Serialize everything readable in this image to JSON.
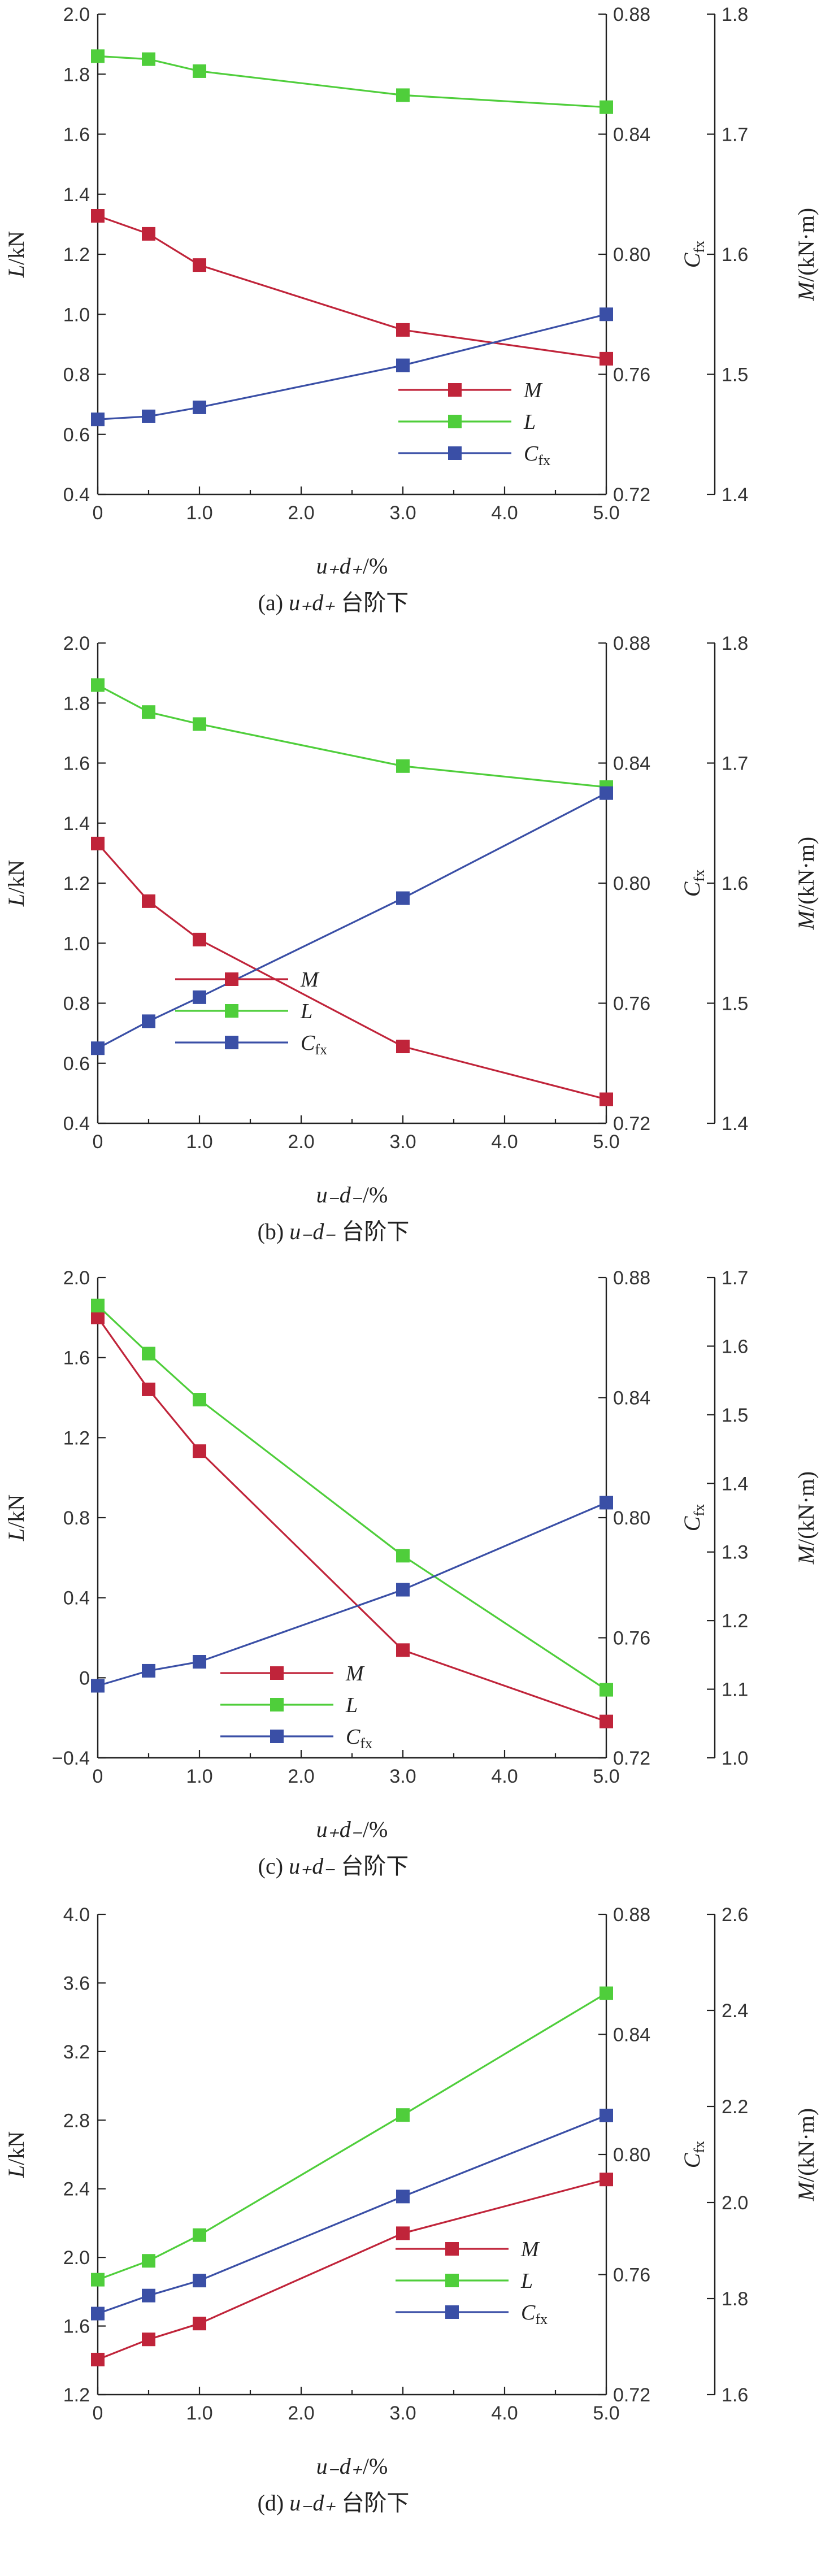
{
  "colors": {
    "M": "#c0243a",
    "L": "#4fce3b",
    "C": "#3a4fa6"
  },
  "legend": {
    "M": "M",
    "L": "L",
    "C_main": "C",
    "C_sub": "fx"
  },
  "axis_labels": {
    "left_main": "L",
    "left_unit": "/kN",
    "mid_main": "C",
    "mid_sub": "fx",
    "right_main": "M",
    "right_unit": "/(kN·m)"
  },
  "chart_data": [
    {
      "type": "line",
      "caption": {
        "prefix": "(a) ",
        "mid": "u₊d₊",
        "suffix": " 台阶下"
      },
      "xlabel": {
        "main": "u₊d₊",
        "unit": "/%"
      },
      "x_ticks": [
        "0",
        "1.0",
        "2.0",
        "3.0",
        "4.0",
        "5.0"
      ],
      "x_range": [
        0,
        5
      ],
      "L_axis": {
        "range": [
          0.4,
          2.0
        ],
        "ticks": [
          "0.4",
          "0.6",
          "0.8",
          "1.0",
          "1.2",
          "1.4",
          "1.6",
          "1.8",
          "2.0"
        ]
      },
      "C_axis": {
        "range": [
          0.72,
          0.88
        ],
        "ticks": [
          "0.72",
          "0.76",
          "0.80",
          "0.84",
          "0.88"
        ]
      },
      "M_axis": {
        "range": [
          1.4,
          1.8
        ],
        "ticks": [
          "1.4",
          "1.5",
          "1.6",
          "1.7",
          "1.8"
        ]
      },
      "x": [
        0,
        0.5,
        1.0,
        3.0,
        5.0
      ],
      "series": [
        {
          "name": "M",
          "axis": "M",
          "values": [
            1.632,
            1.617,
            1.591,
            1.537,
            1.513
          ]
        },
        {
          "name": "L",
          "axis": "L",
          "values": [
            1.86,
            1.85,
            1.81,
            1.73,
            1.69
          ]
        },
        {
          "name": "C",
          "axis": "C",
          "values": [
            0.745,
            0.746,
            0.749,
            0.763,
            0.78
          ]
        }
      ]
    },
    {
      "type": "line",
      "caption": {
        "prefix": "(b) ",
        "mid": "u₋d₋",
        "suffix": " 台阶下"
      },
      "xlabel": {
        "main": "u₋d₋",
        "unit": "/%"
      },
      "x_ticks": [
        "0",
        "1.0",
        "2.0",
        "3.0",
        "4.0",
        "5.0"
      ],
      "x_range": [
        0,
        5
      ],
      "L_axis": {
        "range": [
          0.4,
          2.0
        ],
        "ticks": [
          "0.4",
          "0.6",
          "0.8",
          "1.0",
          "1.2",
          "1.4",
          "1.6",
          "1.8",
          "2.0"
        ]
      },
      "C_axis": {
        "range": [
          0.72,
          0.88
        ],
        "ticks": [
          "0.72",
          "0.76",
          "0.80",
          "0.84",
          "0.88"
        ]
      },
      "M_axis": {
        "range": [
          1.4,
          1.8
        ],
        "ticks": [
          "1.4",
          "1.5",
          "1.6",
          "1.7",
          "1.8"
        ]
      },
      "x": [
        0,
        0.5,
        1.0,
        3.0,
        5.0
      ],
      "series": [
        {
          "name": "M",
          "axis": "M",
          "values": [
            1.633,
            1.585,
            1.553,
            1.464,
            1.42
          ]
        },
        {
          "name": "L",
          "axis": "L",
          "values": [
            1.86,
            1.77,
            1.73,
            1.59,
            1.52
          ]
        },
        {
          "name": "C",
          "axis": "C",
          "values": [
            0.745,
            0.754,
            0.762,
            0.795,
            0.83
          ]
        }
      ]
    },
    {
      "type": "line",
      "caption": {
        "prefix": "(c) ",
        "mid": "u₊d₋",
        "suffix": " 台阶下"
      },
      "xlabel": {
        "main": "u₊d₋",
        "unit": "/%"
      },
      "x_ticks": [
        "0",
        "1.0",
        "2.0",
        "3.0",
        "4.0",
        "5.0"
      ],
      "x_range": [
        0,
        5
      ],
      "L_axis": {
        "range": [
          -0.4,
          2.0
        ],
        "ticks": [
          "−0.4",
          "0",
          "0.4",
          "0.8",
          "1.2",
          "1.6",
          "2.0"
        ]
      },
      "C_axis": {
        "range": [
          0.72,
          0.88
        ],
        "ticks": [
          "0.72",
          "0.76",
          "0.80",
          "0.84",
          "0.88"
        ]
      },
      "M_axis": {
        "range": [
          1.0,
          1.7
        ],
        "ticks": [
          "1.0",
          "1.1",
          "1.2",
          "1.3",
          "1.4",
          "1.5",
          "1.6",
          "1.7"
        ]
      },
      "x": [
        0,
        0.5,
        1.0,
        3.0,
        5.0
      ],
      "series": [
        {
          "name": "M",
          "axis": "M",
          "values": [
            1.642,
            1.537,
            1.447,
            1.157,
            1.053
          ]
        },
        {
          "name": "L",
          "axis": "L",
          "values": [
            1.86,
            1.62,
            1.39,
            0.61,
            -0.06
          ]
        },
        {
          "name": "C",
          "axis": "C",
          "values": [
            0.744,
            0.749,
            0.752,
            0.776,
            0.805
          ]
        }
      ]
    },
    {
      "type": "line",
      "caption": {
        "prefix": "(d) ",
        "mid": "u₋d₊",
        "suffix": " 台阶下"
      },
      "xlabel": {
        "main": "u₋d₊",
        "unit": "/%"
      },
      "x_ticks": [
        "0",
        "1.0",
        "2.0",
        "3.0",
        "4.0",
        "5.0"
      ],
      "x_range": [
        0,
        5
      ],
      "L_axis": {
        "range": [
          1.2,
          4.0
        ],
        "ticks": [
          "1.2",
          "1.6",
          "2.0",
          "2.4",
          "2.8",
          "3.2",
          "3.6",
          "4.0"
        ]
      },
      "C_axis": {
        "range": [
          0.72,
          0.88
        ],
        "ticks": [
          "0.72",
          "0.76",
          "0.80",
          "0.84",
          "0.88"
        ]
      },
      "M_axis": {
        "range": [
          1.6,
          2.6
        ],
        "ticks": [
          "1.6",
          "1.8",
          "2.0",
          "2.2",
          "2.4",
          "2.6"
        ]
      },
      "x": [
        0,
        0.5,
        1.0,
        3.0,
        5.0
      ],
      "series": [
        {
          "name": "M",
          "axis": "M",
          "values": [
            1.673,
            1.715,
            1.748,
            1.936,
            2.048
          ]
        },
        {
          "name": "L",
          "axis": "L",
          "values": [
            1.87,
            1.98,
            2.13,
            2.83,
            3.54
          ]
        },
        {
          "name": "C",
          "axis": "C",
          "values": [
            0.747,
            0.753,
            0.758,
            0.786,
            0.813
          ]
        }
      ]
    }
  ]
}
